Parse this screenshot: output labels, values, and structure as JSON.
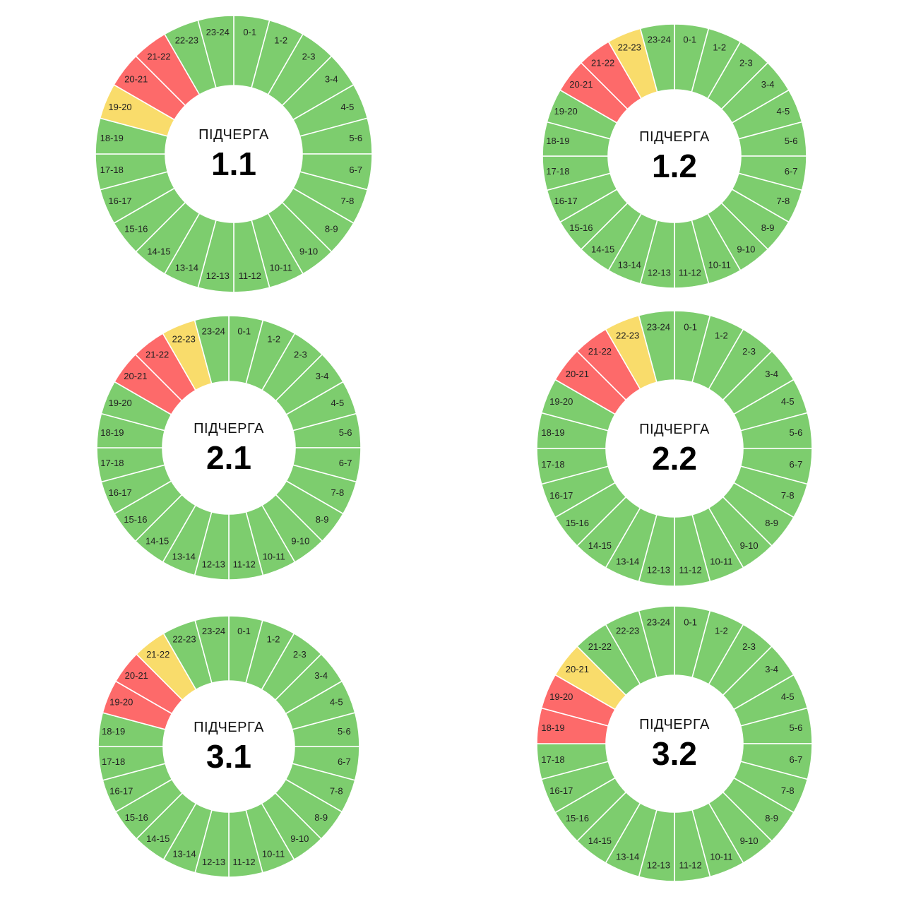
{
  "status_colors": {
    "on": "#7dcd6e",
    "possible": "#f9dc6b",
    "off": "#fd6a6a",
    "divider": "#ffffff"
  },
  "chart_data": [
    {
      "type": "pie",
      "caption": "ПІДЧЕРГА",
      "title": "1.1",
      "categories": [
        "0-1",
        "1-2",
        "2-3",
        "3-4",
        "4-5",
        "5-6",
        "6-7",
        "7-8",
        "8-9",
        "9-10",
        "10-11",
        "11-12",
        "12-13",
        "13-14",
        "14-15",
        "15-16",
        "16-17",
        "17-18",
        "18-19",
        "19-20",
        "20-21",
        "21-22",
        "22-23",
        "23-24"
      ],
      "status": [
        "on",
        "on",
        "on",
        "on",
        "on",
        "on",
        "on",
        "on",
        "on",
        "on",
        "on",
        "on",
        "on",
        "on",
        "on",
        "on",
        "on",
        "on",
        "on",
        "possible",
        "off",
        "off",
        "on",
        "on"
      ]
    },
    {
      "type": "pie",
      "caption": "ПІДЧЕРГА",
      "title": "1.2",
      "categories": [
        "0-1",
        "1-2",
        "2-3",
        "3-4",
        "4-5",
        "5-6",
        "6-7",
        "7-8",
        "8-9",
        "9-10",
        "10-11",
        "11-12",
        "12-13",
        "13-14",
        "14-15",
        "15-16",
        "16-17",
        "17-18",
        "18-19",
        "19-20",
        "20-21",
        "21-22",
        "22-23",
        "23-24"
      ],
      "status": [
        "on",
        "on",
        "on",
        "on",
        "on",
        "on",
        "on",
        "on",
        "on",
        "on",
        "on",
        "on",
        "on",
        "on",
        "on",
        "on",
        "on",
        "on",
        "on",
        "on",
        "off",
        "off",
        "possible",
        "on"
      ]
    },
    {
      "type": "pie",
      "caption": "ПІДЧЕРГА",
      "title": "2.1",
      "categories": [
        "0-1",
        "1-2",
        "2-3",
        "3-4",
        "4-5",
        "5-6",
        "6-7",
        "7-8",
        "8-9",
        "9-10",
        "10-11",
        "11-12",
        "12-13",
        "13-14",
        "14-15",
        "15-16",
        "16-17",
        "17-18",
        "18-19",
        "19-20",
        "20-21",
        "21-22",
        "22-23",
        "23-24"
      ],
      "status": [
        "on",
        "on",
        "on",
        "on",
        "on",
        "on",
        "on",
        "on",
        "on",
        "on",
        "on",
        "on",
        "on",
        "on",
        "on",
        "on",
        "on",
        "on",
        "on",
        "on",
        "off",
        "off",
        "possible",
        "on"
      ]
    },
    {
      "type": "pie",
      "caption": "ПІДЧЕРГА",
      "title": "2.2",
      "categories": [
        "0-1",
        "1-2",
        "2-3",
        "3-4",
        "4-5",
        "5-6",
        "6-7",
        "7-8",
        "8-9",
        "9-10",
        "10-11",
        "11-12",
        "12-13",
        "13-14",
        "14-15",
        "15-16",
        "16-17",
        "17-18",
        "18-19",
        "19-20",
        "20-21",
        "21-22",
        "22-23",
        "23-24"
      ],
      "status": [
        "on",
        "on",
        "on",
        "on",
        "on",
        "on",
        "on",
        "on",
        "on",
        "on",
        "on",
        "on",
        "on",
        "on",
        "on",
        "on",
        "on",
        "on",
        "on",
        "on",
        "off",
        "off",
        "possible",
        "on"
      ]
    },
    {
      "type": "pie",
      "caption": "ПІДЧЕРГА",
      "title": "3.1",
      "categories": [
        "0-1",
        "1-2",
        "2-3",
        "3-4",
        "4-5",
        "5-6",
        "6-7",
        "7-8",
        "8-9",
        "9-10",
        "10-11",
        "11-12",
        "12-13",
        "13-14",
        "14-15",
        "15-16",
        "16-17",
        "17-18",
        "18-19",
        "19-20",
        "20-21",
        "21-22",
        "22-23",
        "23-24"
      ],
      "status": [
        "on",
        "on",
        "on",
        "on",
        "on",
        "on",
        "on",
        "on",
        "on",
        "on",
        "on",
        "on",
        "on",
        "on",
        "on",
        "on",
        "on",
        "on",
        "on",
        "off",
        "off",
        "possible",
        "on",
        "on"
      ]
    },
    {
      "type": "pie",
      "caption": "ПІДЧЕРГА",
      "title": "3.2",
      "categories": [
        "0-1",
        "1-2",
        "2-3",
        "3-4",
        "4-5",
        "5-6",
        "6-7",
        "7-8",
        "8-9",
        "9-10",
        "10-11",
        "11-12",
        "12-13",
        "13-14",
        "14-15",
        "15-16",
        "16-17",
        "17-18",
        "18-19",
        "19-20",
        "20-21",
        "21-22",
        "22-23",
        "23-24"
      ],
      "status": [
        "on",
        "on",
        "on",
        "on",
        "on",
        "on",
        "on",
        "on",
        "on",
        "on",
        "on",
        "on",
        "on",
        "on",
        "on",
        "on",
        "on",
        "on",
        "off",
        "off",
        "possible",
        "on",
        "on",
        "on"
      ]
    }
  ]
}
